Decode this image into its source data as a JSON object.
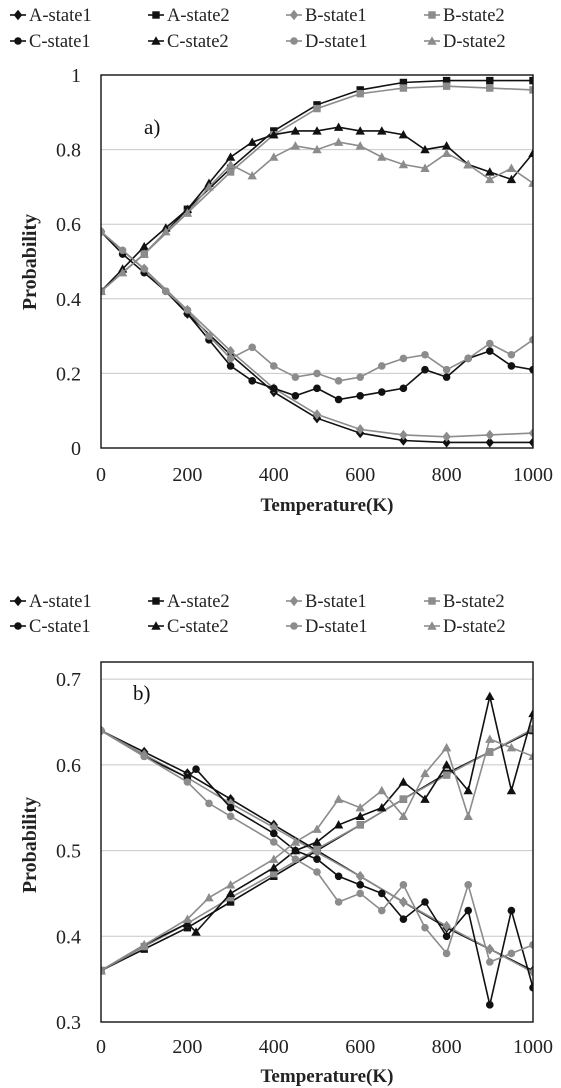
{
  "colors": {
    "black": "#111111",
    "gray": "#8c8c8c"
  },
  "chart_data": [
    {
      "type": "line",
      "annotation": "a)",
      "xlabel": "Temperature(K)",
      "ylabel": "Probability",
      "xlim": [
        0,
        1000
      ],
      "ylim": [
        0,
        1
      ],
      "xticks": [
        "0",
        "200",
        "400",
        "600",
        "800",
        "1000"
      ],
      "yticks": [
        "0",
        "0.2",
        "0.4",
        "0.6",
        "0.8",
        "1"
      ],
      "grid": "horizontal",
      "legend_position": "top",
      "series": [
        {
          "name": "A-state1",
          "marker": "diamond",
          "color": "black",
          "x": [
            0,
            100,
            200,
            300,
            400,
            500,
            600,
            700,
            800,
            900,
            1000
          ],
          "y": [
            0.58,
            0.48,
            0.36,
            0.25,
            0.15,
            0.08,
            0.04,
            0.02,
            0.015,
            0.015,
            0.015
          ]
        },
        {
          "name": "A-state2",
          "marker": "square",
          "color": "black",
          "x": [
            0,
            100,
            200,
            300,
            400,
            500,
            600,
            700,
            800,
            900,
            1000
          ],
          "y": [
            0.42,
            0.52,
            0.64,
            0.75,
            0.85,
            0.92,
            0.96,
            0.98,
            0.985,
            0.985,
            0.985
          ]
        },
        {
          "name": "B-state1",
          "marker": "diamond",
          "color": "gray",
          "x": [
            0,
            100,
            200,
            300,
            400,
            500,
            600,
            700,
            800,
            900,
            1000
          ],
          "y": [
            0.58,
            0.48,
            0.37,
            0.26,
            0.16,
            0.09,
            0.05,
            0.035,
            0.03,
            0.035,
            0.04
          ]
        },
        {
          "name": "B-state2",
          "marker": "square",
          "color": "gray",
          "x": [
            0,
            100,
            200,
            300,
            400,
            500,
            600,
            700,
            800,
            900,
            1000
          ],
          "y": [
            0.42,
            0.52,
            0.63,
            0.74,
            0.84,
            0.91,
            0.95,
            0.965,
            0.97,
            0.965,
            0.96
          ]
        },
        {
          "name": "C-state1",
          "marker": "circle",
          "color": "black",
          "x": [
            0,
            50,
            100,
            150,
            200,
            250,
            300,
            350,
            400,
            450,
            500,
            550,
            600,
            650,
            700,
            750,
            800,
            850,
            900,
            950,
            1000
          ],
          "y": [
            0.58,
            0.52,
            0.47,
            0.42,
            0.36,
            0.29,
            0.22,
            0.18,
            0.16,
            0.14,
            0.16,
            0.13,
            0.14,
            0.15,
            0.16,
            0.21,
            0.19,
            0.24,
            0.26,
            0.22,
            0.21
          ]
        },
        {
          "name": "C-state2",
          "marker": "triangle",
          "color": "black",
          "x": [
            0,
            50,
            100,
            150,
            200,
            250,
            300,
            350,
            400,
            450,
            500,
            550,
            600,
            650,
            700,
            750,
            800,
            850,
            900,
            950,
            1000
          ],
          "y": [
            0.42,
            0.48,
            0.54,
            0.59,
            0.64,
            0.71,
            0.78,
            0.82,
            0.84,
            0.85,
            0.85,
            0.86,
            0.85,
            0.85,
            0.84,
            0.8,
            0.81,
            0.76,
            0.74,
            0.72,
            0.79
          ]
        },
        {
          "name": "D-state1",
          "marker": "circle",
          "color": "gray",
          "x": [
            0,
            50,
            100,
            150,
            200,
            250,
            300,
            350,
            400,
            450,
            500,
            550,
            600,
            650,
            700,
            750,
            800,
            850,
            900,
            950,
            1000
          ],
          "y": [
            0.58,
            0.53,
            0.48,
            0.42,
            0.37,
            0.3,
            0.24,
            0.27,
            0.22,
            0.19,
            0.2,
            0.18,
            0.19,
            0.22,
            0.24,
            0.25,
            0.21,
            0.24,
            0.28,
            0.25,
            0.29
          ]
        },
        {
          "name": "D-state2",
          "marker": "triangle",
          "color": "gray",
          "x": [
            0,
            50,
            100,
            150,
            200,
            250,
            300,
            350,
            400,
            450,
            500,
            550,
            600,
            650,
            700,
            750,
            800,
            850,
            900,
            950,
            1000
          ],
          "y": [
            0.42,
            0.47,
            0.52,
            0.58,
            0.63,
            0.7,
            0.76,
            0.73,
            0.78,
            0.81,
            0.8,
            0.82,
            0.81,
            0.78,
            0.76,
            0.75,
            0.79,
            0.76,
            0.72,
            0.75,
            0.71
          ]
        }
      ]
    },
    {
      "type": "line",
      "annotation": "b)",
      "xlabel": "Temperature(K)",
      "ylabel": "Probability",
      "xlim": [
        0,
        1000
      ],
      "ylim": [
        0.3,
        0.72
      ],
      "xticks": [
        "0",
        "200",
        "400",
        "600",
        "800",
        "1000"
      ],
      "yticks": [
        "0.3",
        "0.4",
        "0.5",
        "0.6",
        "0.7"
      ],
      "ytick_values": [
        0.3,
        0.4,
        0.5,
        0.6,
        0.7
      ],
      "grid": "horizontal",
      "legend_position": "top",
      "series": [
        {
          "name": "A-state1",
          "marker": "diamond",
          "color": "black",
          "x": [
            0,
            100,
            200,
            300,
            400,
            500,
            600,
            700,
            800,
            900,
            1000
          ],
          "y": [
            0.64,
            0.615,
            0.59,
            0.56,
            0.53,
            0.5,
            0.47,
            0.44,
            0.41,
            0.385,
            0.36
          ]
        },
        {
          "name": "A-state2",
          "marker": "square",
          "color": "black",
          "x": [
            0,
            100,
            200,
            300,
            400,
            500,
            600,
            700,
            800,
            900,
            1000
          ],
          "y": [
            0.36,
            0.385,
            0.41,
            0.44,
            0.47,
            0.5,
            0.53,
            0.56,
            0.59,
            0.615,
            0.64
          ]
        },
        {
          "name": "B-state1",
          "marker": "diamond",
          "color": "gray",
          "x": [
            0,
            100,
            200,
            300,
            400,
            500,
            600,
            700,
            800,
            900,
            1000
          ],
          "y": [
            0.64,
            0.612,
            0.585,
            0.555,
            0.527,
            0.498,
            0.47,
            0.44,
            0.412,
            0.385,
            0.358
          ]
        },
        {
          "name": "B-state2",
          "marker": "square",
          "color": "gray",
          "x": [
            0,
            100,
            200,
            300,
            400,
            500,
            600,
            700,
            800,
            900,
            1000
          ],
          "y": [
            0.36,
            0.388,
            0.415,
            0.445,
            0.473,
            0.502,
            0.53,
            0.56,
            0.588,
            0.615,
            0.642
          ]
        },
        {
          "name": "C-state1",
          "marker": "circle",
          "color": "black",
          "x": [
            0,
            100,
            200,
            220,
            300,
            400,
            450,
            500,
            550,
            600,
            650,
            700,
            750,
            800,
            850,
            900,
            950,
            1000
          ],
          "y": [
            0.64,
            0.61,
            0.585,
            0.595,
            0.55,
            0.52,
            0.5,
            0.49,
            0.47,
            0.46,
            0.45,
            0.42,
            0.44,
            0.4,
            0.43,
            0.32,
            0.43,
            0.34
          ]
        },
        {
          "name": "C-state2",
          "marker": "triangle",
          "color": "black",
          "x": [
            0,
            100,
            200,
            220,
            300,
            400,
            450,
            500,
            550,
            600,
            650,
            700,
            750,
            800,
            850,
            900,
            950,
            1000
          ],
          "y": [
            0.36,
            0.39,
            0.415,
            0.405,
            0.45,
            0.48,
            0.5,
            0.51,
            0.53,
            0.54,
            0.55,
            0.58,
            0.56,
            0.6,
            0.57,
            0.68,
            0.57,
            0.66
          ]
        },
        {
          "name": "D-state1",
          "marker": "circle",
          "color": "gray",
          "x": [
            0,
            100,
            200,
            250,
            300,
            400,
            450,
            500,
            550,
            600,
            650,
            700,
            750,
            800,
            850,
            900,
            950,
            1000
          ],
          "y": [
            0.64,
            0.61,
            0.58,
            0.555,
            0.54,
            0.51,
            0.49,
            0.475,
            0.44,
            0.45,
            0.43,
            0.46,
            0.41,
            0.38,
            0.46,
            0.37,
            0.38,
            0.39
          ]
        },
        {
          "name": "D-state2",
          "marker": "triangle",
          "color": "gray",
          "x": [
            0,
            100,
            200,
            250,
            300,
            400,
            450,
            500,
            550,
            600,
            650,
            700,
            750,
            800,
            850,
            900,
            950,
            1000
          ],
          "y": [
            0.36,
            0.39,
            0.42,
            0.445,
            0.46,
            0.49,
            0.51,
            0.525,
            0.56,
            0.55,
            0.57,
            0.54,
            0.59,
            0.62,
            0.54,
            0.63,
            0.62,
            0.61
          ]
        }
      ]
    }
  ]
}
